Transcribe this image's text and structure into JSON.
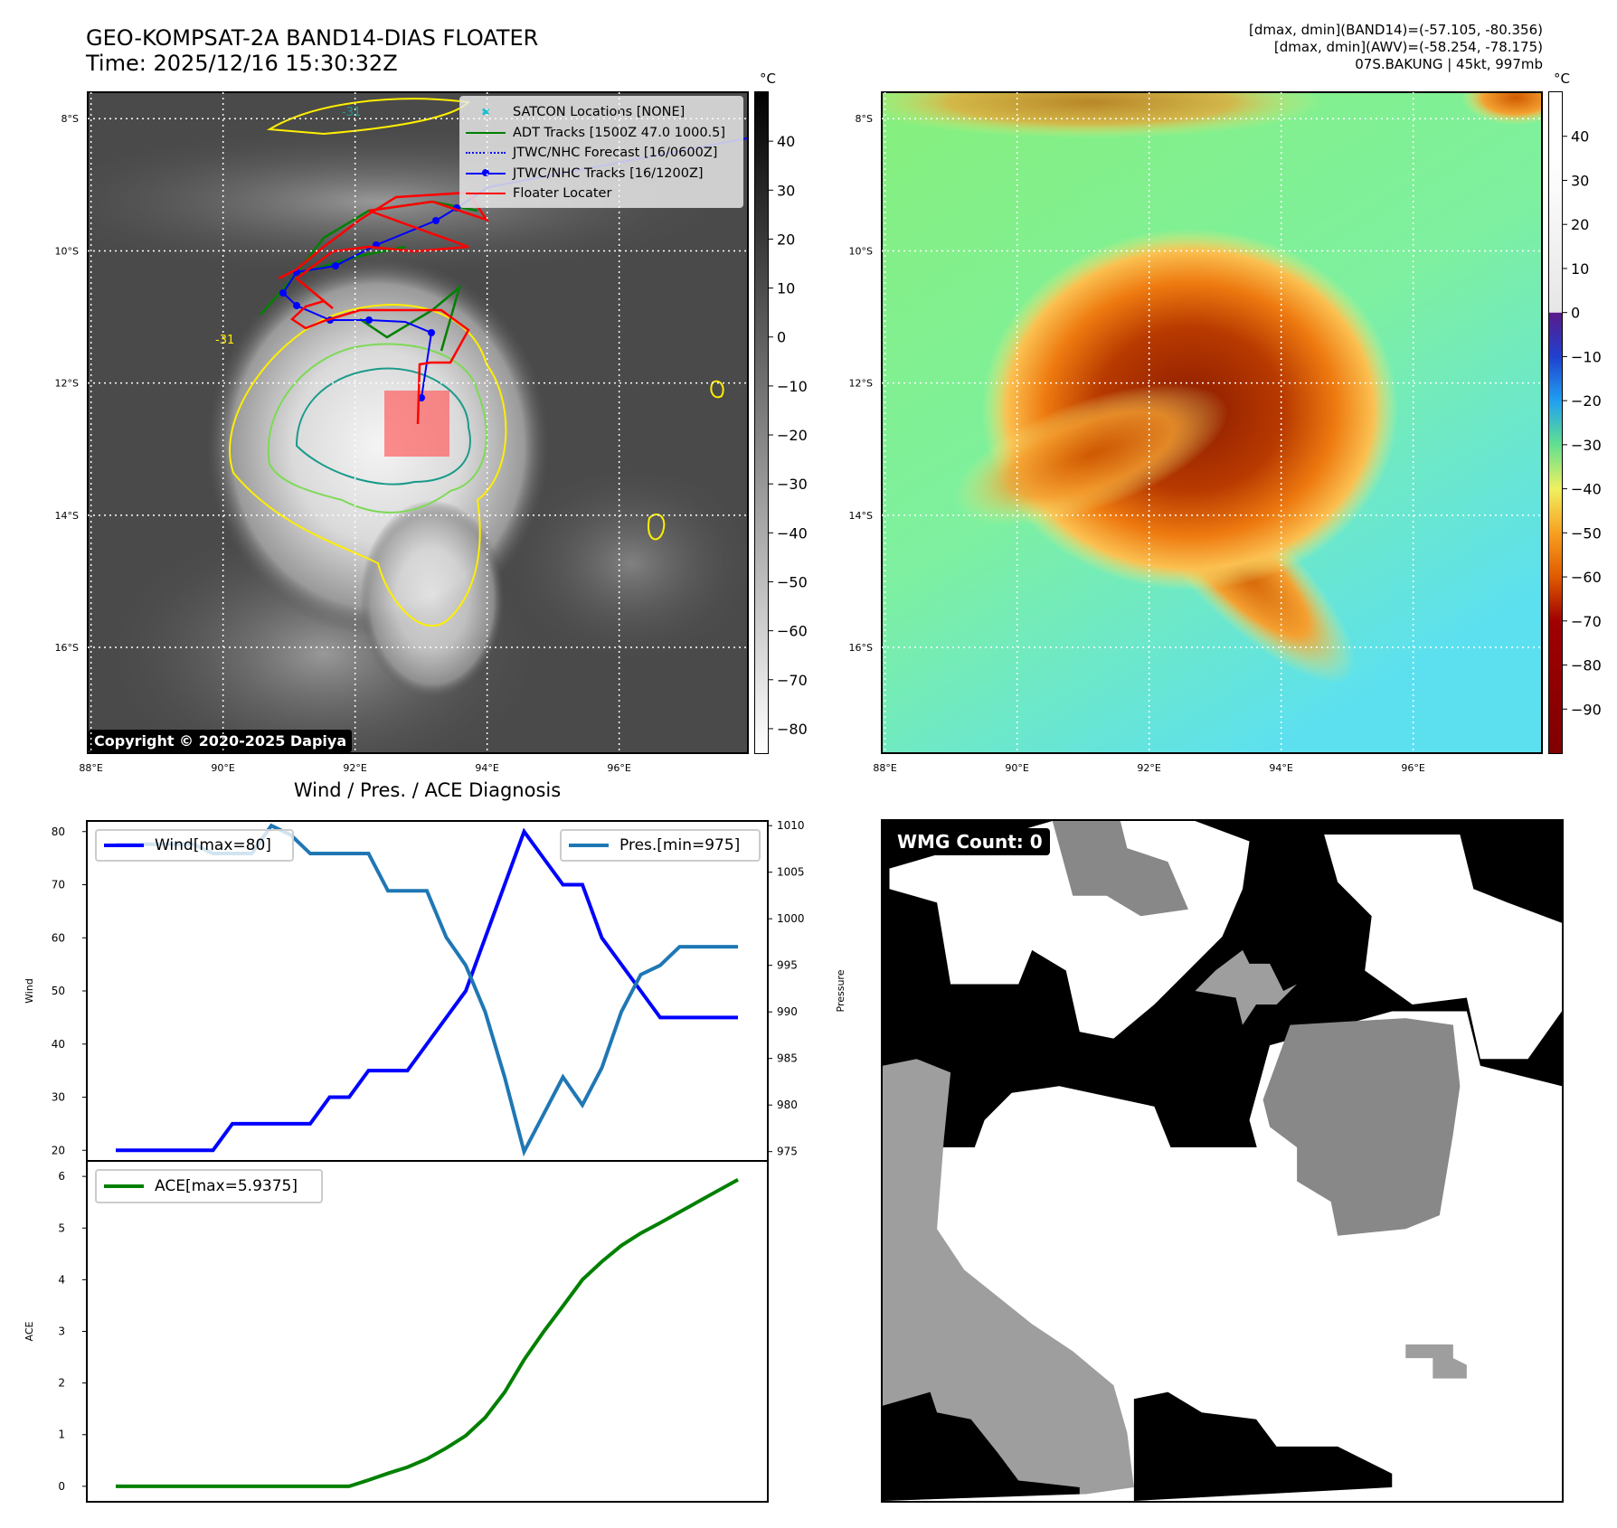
{
  "header": {
    "title_line1": "GEO-KOMPSAT-2A BAND14-DIAS FLOATER",
    "title_line2": "Time: 2025/12/16 15:30:32Z",
    "info_line1": "[dmax, dmin](BAND14)=(-57.105, -80.356)",
    "info_line2": "[dmax, dmin](AWV)=(-58.254, -78.175)",
    "info_line3": "07S.BAKUNG | 45kt, 997mb"
  },
  "map_axes": {
    "lon_ticks": [
      88,
      90,
      92,
      94,
      96
    ],
    "lon_labels": [
      "88°E",
      "90°E",
      "92°E",
      "94°E",
      "96°E"
    ],
    "lat_ticks": [
      8,
      10,
      12,
      14,
      16
    ],
    "lat_labels": [
      "8°S",
      "10°S",
      "12°S",
      "14°S",
      "16°S"
    ],
    "lon_range": [
      87.95,
      97.95
    ],
    "lat_range": [
      7.6,
      17.6
    ]
  },
  "ir_map": {
    "copyright": "Copyright © 2020-2025 Dapiya",
    "contour_label": "-31",
    "legend": [
      {
        "label": "SATCON Locations [NONE]",
        "color": "#17becf",
        "style": "x"
      },
      {
        "label": "ADT Tracks [1500Z 47.0 1000.5]",
        "color": "#008000",
        "style": "solid"
      },
      {
        "label": "JTWC/NHC Forecast [16/0600Z]",
        "color": "#0000ff",
        "style": "dotted"
      },
      {
        "label": "JTWC/NHC Tracks [16/1200Z]",
        "color": "#0000ff",
        "style": "dot-line"
      },
      {
        "label": "Floater Locater",
        "color": "#ff0000",
        "style": "solid"
      }
    ],
    "colorbar": {
      "unit": "°C",
      "ticks": [
        40,
        30,
        20,
        10,
        0,
        -10,
        -20,
        -30,
        -40,
        -50,
        -60,
        -70,
        -80
      ],
      "range": [
        -85,
        50
      ]
    }
  },
  "awv_map": {
    "colorbar": {
      "unit": "°C",
      "ticks": [
        40,
        30,
        20,
        10,
        0,
        -10,
        -20,
        -30,
        -40,
        -50,
        -60,
        -70,
        -80,
        -90
      ],
      "range": [
        -100,
        50
      ]
    }
  },
  "wmg": {
    "label": "WMG Count: 0"
  },
  "chart_data": [
    {
      "type": "line",
      "title": "Wind / Pres. / ACE Diagnosis",
      "x": [
        0,
        1,
        2,
        3,
        4,
        5,
        6,
        7,
        8,
        9,
        10,
        11,
        12,
        13,
        14,
        15,
        16,
        17,
        18,
        19,
        20,
        21,
        22,
        23,
        24,
        25,
        26,
        27,
        28,
        29,
        30,
        31,
        32
      ],
      "series": [
        {
          "name": "Wind[max=80]",
          "axis": "left",
          "color": "#0000ff",
          "values": [
            20,
            20,
            20,
            20,
            20,
            20,
            25,
            25,
            25,
            25,
            25,
            30,
            30,
            35,
            35,
            35,
            40,
            45,
            50,
            60,
            70,
            80,
            75,
            70,
            70,
            60,
            55,
            50,
            45,
            45,
            45,
            45,
            45
          ]
        },
        {
          "name": "Pres.[min=975]",
          "axis": "right",
          "color": "#1f77b4",
          "values": [
            1008,
            1008,
            1008,
            1008,
            1008,
            1007,
            1007,
            1007,
            1010,
            1009,
            1007,
            1007,
            1007,
            1007,
            1003,
            1003,
            1003,
            998,
            995,
            990,
            983,
            975,
            979,
            983,
            980,
            984,
            990,
            994,
            995,
            997,
            997,
            997,
            997
          ]
        }
      ],
      "ylabel": "Wind",
      "ylim": [
        18,
        82
      ],
      "yticks": [
        20,
        30,
        40,
        50,
        60,
        70,
        80
      ],
      "y2label": "Pressure",
      "y2lim": [
        974,
        1010.5
      ],
      "y2ticks": [
        975,
        980,
        985,
        990,
        995,
        1000,
        1005,
        1010
      ]
    },
    {
      "type": "line",
      "x": [
        0,
        1,
        2,
        3,
        4,
        5,
        6,
        7,
        8,
        9,
        10,
        11,
        12,
        13,
        14,
        15,
        16,
        17,
        18,
        19,
        20,
        21,
        22,
        23,
        24,
        25,
        26,
        27,
        28,
        29,
        30,
        31,
        32
      ],
      "series": [
        {
          "name": "ACE[max=5.9375]",
          "color": "#008000",
          "values": [
            0,
            0,
            0,
            0,
            0,
            0,
            0,
            0,
            0,
            0,
            0,
            0,
            0,
            0.12,
            0.25,
            0.37,
            0.53,
            0.74,
            0.98,
            1.33,
            1.82,
            2.45,
            2.99,
            3.49,
            4.0,
            4.35,
            4.66,
            4.9,
            5.1,
            5.31,
            5.52,
            5.73,
            5.9375
          ]
        }
      ],
      "ylabel": "ACE",
      "ylim": [
        -0.3,
        6.3
      ],
      "yticks": [
        0,
        1,
        2,
        3,
        4,
        5,
        6
      ]
    }
  ]
}
